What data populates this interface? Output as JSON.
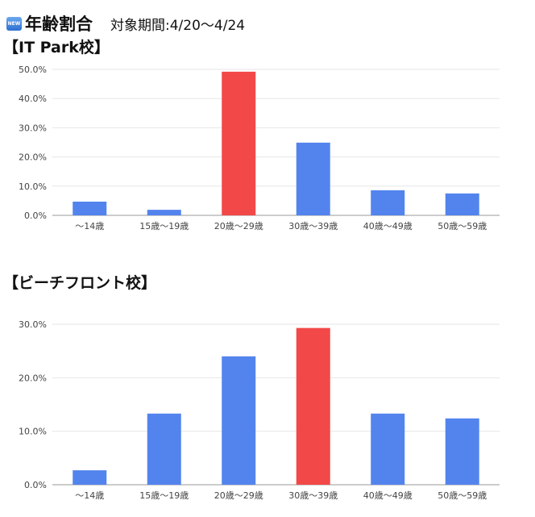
{
  "header": {
    "badge": "NEW",
    "title": "年齢割合",
    "period": "対象期間:4/20〜4/24"
  },
  "colors": {
    "bar": "#5384ed",
    "highlight": "#f24848"
  },
  "chart_data": [
    {
      "type": "bar",
      "title": "【IT Park校】",
      "categories": [
        "〜14歳",
        "15歳〜19歳",
        "20歳〜29歳",
        "30歳〜39歳",
        "40歳〜49歳",
        "50歳〜59歳"
      ],
      "values": [
        4.7,
        1.9,
        49.2,
        24.9,
        8.6,
        7.5
      ],
      "highlight_index": 2,
      "ylim": [
        0,
        50
      ],
      "yticks": [
        "0.0%",
        "10.0%",
        "20.0%",
        "30.0%",
        "40.0%",
        "50.0%"
      ],
      "xlabel": "",
      "ylabel": "",
      "grid": true
    },
    {
      "type": "bar",
      "title": "【ビーチフロント校】",
      "categories": [
        "〜14歳",
        "15歳〜19歳",
        "20歳〜29歳",
        "30歳〜39歳",
        "40歳〜49歳",
        "50歳〜59歳"
      ],
      "values": [
        2.7,
        13.3,
        24.0,
        29.3,
        13.3,
        12.4
      ],
      "highlight_index": 3,
      "ylim": [
        0,
        30
      ],
      "yticks": [
        "0.0%",
        "10.0%",
        "20.0%",
        "30.0%"
      ],
      "xlabel": "",
      "ylabel": "",
      "grid": true
    }
  ]
}
